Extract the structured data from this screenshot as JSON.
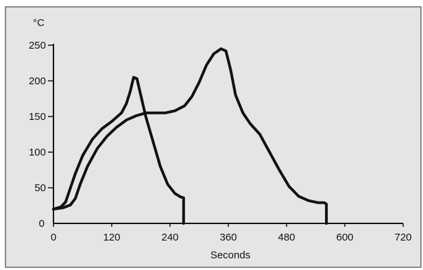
{
  "chart_data": {
    "type": "line",
    "title": "",
    "xlabel": "Seconds",
    "ylabel": "°C",
    "xlim": [
      0,
      720
    ],
    "ylim": [
      0,
      250
    ],
    "x_ticks": [
      0,
      120,
      240,
      360,
      480,
      600,
      720
    ],
    "y_ticks": [
      0,
      50,
      100,
      150,
      200,
      250
    ],
    "grid": false,
    "legend": "none",
    "colors": {
      "background": "#e5e5e5",
      "line": "#111111",
      "axis": "#111111"
    },
    "series": [
      {
        "points": [
          [
            0,
            20
          ],
          [
            15,
            23
          ],
          [
            25,
            30
          ],
          [
            35,
            50
          ],
          [
            45,
            70
          ],
          [
            60,
            95
          ],
          [
            80,
            118
          ],
          [
            100,
            133
          ],
          [
            120,
            143
          ],
          [
            140,
            155
          ],
          [
            150,
            168
          ],
          [
            158,
            185
          ],
          [
            165,
            205
          ],
          [
            172,
            203
          ],
          [
            178,
            185
          ],
          [
            190,
            150
          ],
          [
            205,
            115
          ],
          [
            220,
            80
          ],
          [
            235,
            55
          ],
          [
            250,
            42
          ],
          [
            262,
            37
          ],
          [
            268,
            36
          ],
          [
            268,
            0
          ]
        ]
      },
      {
        "points": [
          [
            0,
            20
          ],
          [
            20,
            22
          ],
          [
            35,
            26
          ],
          [
            45,
            35
          ],
          [
            55,
            55
          ],
          [
            70,
            80
          ],
          [
            90,
            105
          ],
          [
            110,
            122
          ],
          [
            130,
            135
          ],
          [
            150,
            145
          ],
          [
            170,
            151
          ],
          [
            190,
            155
          ],
          [
            210,
            155
          ],
          [
            230,
            155
          ],
          [
            250,
            158
          ],
          [
            270,
            165
          ],
          [
            285,
            178
          ],
          [
            300,
            198
          ],
          [
            315,
            222
          ],
          [
            330,
            238
          ],
          [
            345,
            245
          ],
          [
            355,
            242
          ],
          [
            365,
            215
          ],
          [
            375,
            180
          ],
          [
            390,
            155
          ],
          [
            405,
            140
          ],
          [
            425,
            125
          ],
          [
            445,
            100
          ],
          [
            465,
            75
          ],
          [
            485,
            52
          ],
          [
            505,
            38
          ],
          [
            525,
            32
          ],
          [
            545,
            29
          ],
          [
            558,
            29
          ],
          [
            562,
            27
          ],
          [
            562,
            0
          ]
        ]
      }
    ]
  }
}
